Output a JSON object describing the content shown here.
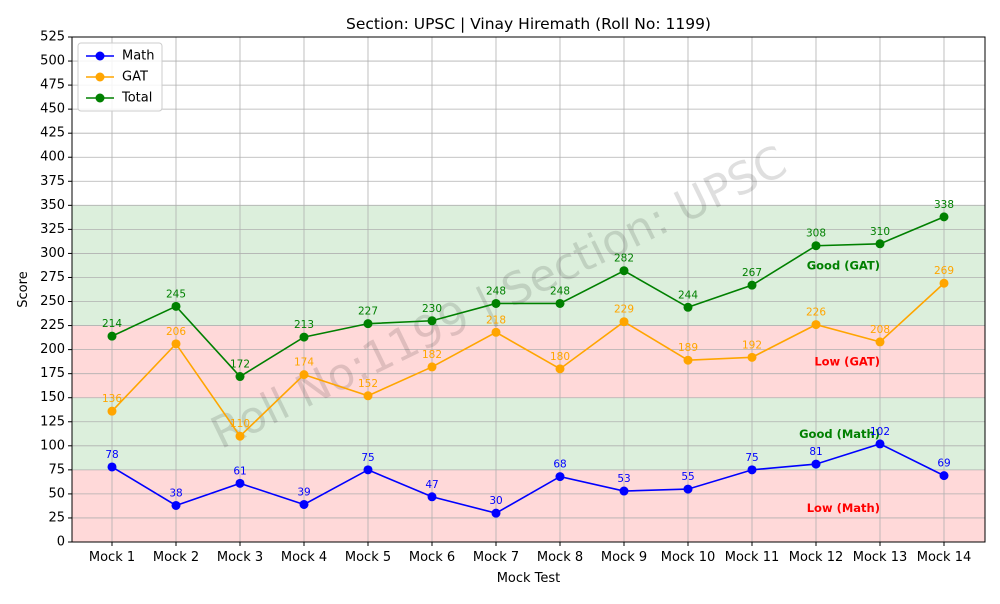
{
  "chart_data": {
    "type": "line",
    "title": "Section: UPSC | Vinay Hiremath (Roll No: 1199)",
    "xlabel": "Mock Test",
    "ylabel": "Score",
    "categories": [
      "Mock 1",
      "Mock 2",
      "Mock 3",
      "Mock 4",
      "Mock 5",
      "Mock 6",
      "Mock 7",
      "Mock 8",
      "Mock 9",
      "Mock 10",
      "Mock 11",
      "Mock 12",
      "Mock 13",
      "Mock 14"
    ],
    "series": [
      {
        "name": "Math",
        "color": "#0000ff",
        "values": [
          78,
          38,
          61,
          39,
          75,
          47,
          30,
          68,
          53,
          55,
          75,
          81,
          102,
          69
        ]
      },
      {
        "name": "GAT",
        "color": "#ffa500",
        "values": [
          136,
          206,
          110,
          174,
          152,
          182,
          218,
          180,
          229,
          189,
          192,
          226,
          208,
          269
        ]
      },
      {
        "name": "Total",
        "color": "#008000",
        "values": [
          214,
          245,
          172,
          213,
          227,
          230,
          248,
          248,
          282,
          244,
          267,
          308,
          310,
          338
        ]
      }
    ],
    "ylim": [
      0,
      525
    ],
    "ytick_step": 25,
    "grid": true,
    "legend_position": "top-left",
    "bands": [
      {
        "label": "Low (Math)",
        "y0": 0,
        "y1": 75,
        "color": "#ffcccc",
        "label_color": "#ff0000",
        "label_y": 35
      },
      {
        "label": "Good (Math)",
        "y0": 75,
        "y1": 150,
        "color": "#d0ead0",
        "label_color": "#008000",
        "label_y": 112
      },
      {
        "label": "Low (GAT)",
        "y0": 150,
        "y1": 225,
        "color": "#ffcccc",
        "label_color": "#ff0000",
        "label_y": 187
      },
      {
        "label": "Good (GAT)",
        "y0": 225,
        "y1": 350,
        "color": "#d0ead0",
        "label_color": "#008000",
        "label_y": 287
      }
    ],
    "watermark": "Roll No:1199 | Section: UPSC"
  }
}
